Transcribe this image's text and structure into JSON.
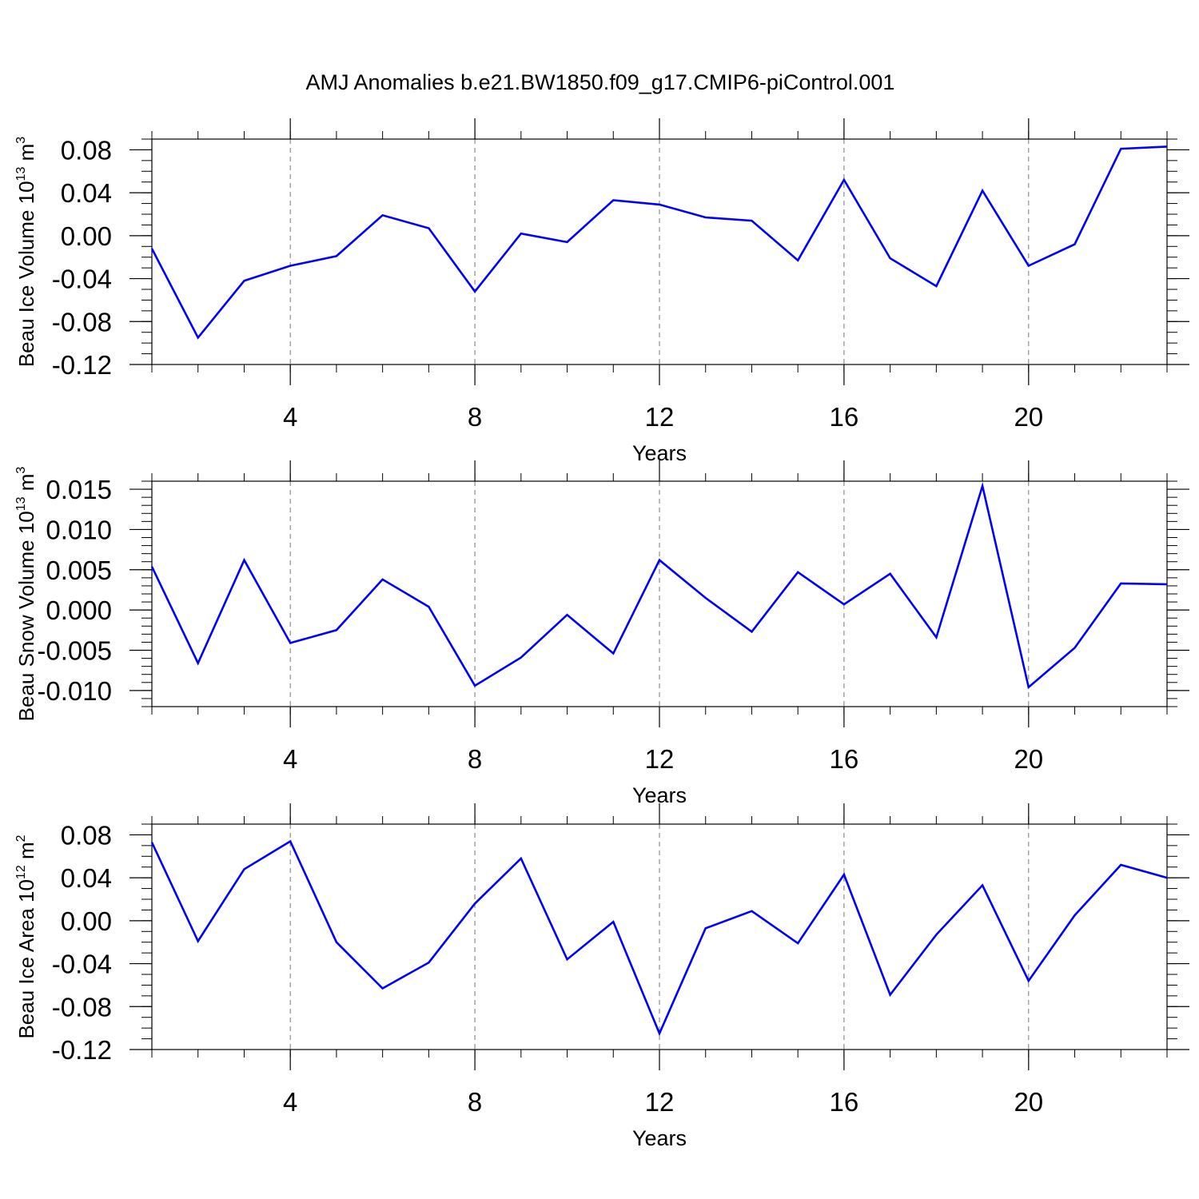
{
  "title": "AMJ Anomalies b.e21.BW1850.f09_g17.CMIP6-piControl.001",
  "line_color": "#0000ff",
  "chart_data": [
    {
      "type": "line",
      "title": "",
      "xlabel": "Years",
      "ylabel": {
        "text": "Beau Ice Volume 10",
        "sup": "13",
        "unit": " m",
        "unit_sup": "3"
      },
      "x": [
        1,
        2,
        3,
        4,
        5,
        6,
        7,
        8,
        9,
        10,
        11,
        12,
        13,
        14,
        15,
        16,
        17,
        18,
        19,
        20,
        21,
        22,
        23
      ],
      "xlim": [
        1,
        23
      ],
      "xticks": [
        4,
        8,
        12,
        16,
        20
      ],
      "xtick_labels": [
        "4",
        "8",
        "12",
        "16",
        "20"
      ],
      "ylim": [
        -0.12,
        0.09
      ],
      "yticks": [
        0.08,
        0.04,
        0.0,
        -0.04,
        -0.08,
        -0.12
      ],
      "ytick_labels": [
        "0.08",
        "0.04",
        "0.00",
        "-0.04",
        "-0.08",
        "-0.12"
      ],
      "yminor_step": 0.01,
      "grid": "vertical-dashed",
      "series": [
        {
          "values": [
            -0.012,
            -0.095,
            -0.042,
            -0.028,
            -0.019,
            0.019,
            0.007,
            -0.052,
            0.002,
            -0.006,
            0.033,
            0.029,
            0.017,
            0.014,
            -0.023,
            0.052,
            -0.021,
            -0.047,
            0.042,
            -0.028,
            -0.008,
            0.081,
            0.083
          ]
        }
      ]
    },
    {
      "type": "line",
      "title": "",
      "xlabel": "Years",
      "ylabel": {
        "text": "Beau Snow Volume 10",
        "sup": "13",
        "unit": " m",
        "unit_sup": "3"
      },
      "x": [
        1,
        2,
        3,
        4,
        5,
        6,
        7,
        8,
        9,
        10,
        11,
        12,
        13,
        14,
        15,
        16,
        17,
        18,
        19,
        20,
        21,
        22,
        23
      ],
      "xlim": [
        1,
        23
      ],
      "xticks": [
        4,
        8,
        12,
        16,
        20
      ],
      "xtick_labels": [
        "4",
        "8",
        "12",
        "16",
        "20"
      ],
      "ylim": [
        -0.012,
        0.016
      ],
      "yticks": [
        0.015,
        0.01,
        0.005,
        0.0,
        -0.005,
        -0.01
      ],
      "ytick_labels": [
        "0.015",
        "0.010",
        "0.005",
        "0.000",
        "-0.005",
        "-0.010"
      ],
      "yminor_step": 0.001,
      "grid": "vertical-dashed",
      "series": [
        {
          "values": [
            0.0054,
            -0.0066,
            0.0062,
            -0.0041,
            -0.0025,
            0.0038,
            0.0004,
            -0.0094,
            -0.0059,
            -0.0006,
            -0.0054,
            0.0062,
            0.0015,
            -0.0027,
            0.0047,
            0.0007,
            0.0045,
            -0.0034,
            0.0154,
            -0.0096,
            -0.0047,
            0.0033,
            0.0032
          ]
        }
      ]
    },
    {
      "type": "line",
      "title": "",
      "xlabel": "Years",
      "ylabel": {
        "text": "Beau Ice Area 10",
        "sup": "12",
        "unit": " m",
        "unit_sup": "2"
      },
      "x": [
        1,
        2,
        3,
        4,
        5,
        6,
        7,
        8,
        9,
        10,
        11,
        12,
        13,
        14,
        15,
        16,
        17,
        18,
        19,
        20,
        21,
        22,
        23
      ],
      "xlim": [
        1,
        23
      ],
      "xticks": [
        4,
        8,
        12,
        16,
        20
      ],
      "xtick_labels": [
        "4",
        "8",
        "12",
        "16",
        "20"
      ],
      "ylim": [
        -0.12,
        0.09
      ],
      "yticks": [
        0.08,
        0.04,
        0.0,
        -0.04,
        -0.08,
        -0.12
      ],
      "ytick_labels": [
        "0.08",
        "0.04",
        "0.00",
        "-0.04",
        "-0.08",
        "-0.12"
      ],
      "yminor_step": 0.01,
      "grid": "vertical-dashed",
      "series": [
        {
          "values": [
            0.073,
            -0.019,
            0.048,
            0.074,
            -0.02,
            -0.063,
            -0.039,
            0.016,
            0.058,
            -0.036,
            -0.001,
            -0.105,
            -0.007,
            0.009,
            -0.021,
            0.043,
            -0.069,
            -0.013,
            0.033,
            -0.056,
            0.005,
            0.052,
            0.04
          ]
        }
      ]
    }
  ]
}
